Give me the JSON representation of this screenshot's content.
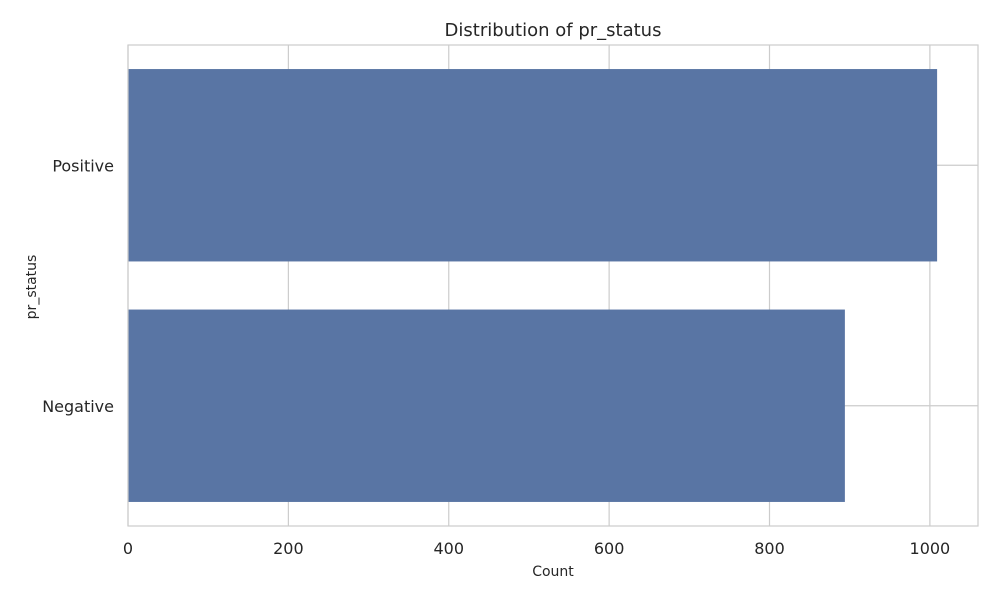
{
  "chart_data": {
    "type": "bar",
    "orientation": "horizontal",
    "title": "Distribution of pr_status",
    "xlabel": "Count",
    "ylabel": "pr_status",
    "categories": [
      "Positive",
      "Negative"
    ],
    "values": [
      1009,
      894
    ],
    "xlim": [
      0,
      1060
    ],
    "x_ticks": [
      0,
      200,
      400,
      600,
      800,
      1000
    ],
    "x_tick_labels": [
      "0",
      "200",
      "400",
      "600",
      "800",
      "1000"
    ],
    "grid": true,
    "legend": "none",
    "bar_color": "#5975a4"
  }
}
